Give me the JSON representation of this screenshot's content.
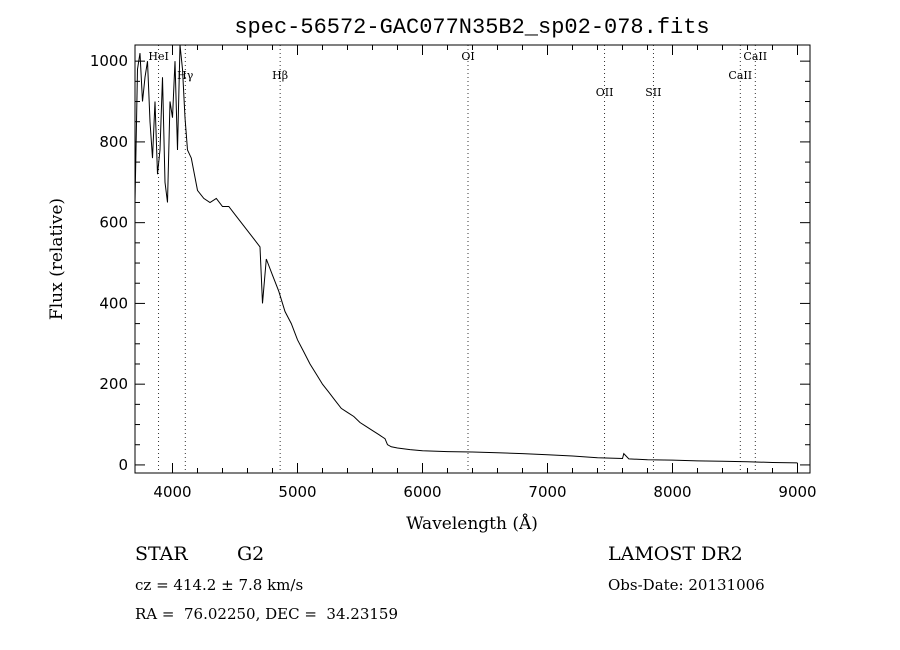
{
  "chart_data": {
    "type": "line",
    "title": "spec-56572-GAC077N35B2_sp02-078.fits",
    "xlabel": "Wavelength (Å)",
    "ylabel": "Flux (relative)",
    "xlim": [
      3700,
      9100
    ],
    "ylim": [
      -20,
      1040
    ],
    "x_ticks": [
      4000,
      5000,
      6000,
      7000,
      8000,
      9000
    ],
    "y_ticks": [
      0,
      200,
      400,
      600,
      800,
      1000
    ],
    "grid": false,
    "series": [
      {
        "x": [
          3700,
          3720,
          3740,
          3760,
          3780,
          3800,
          3820,
          3840,
          3860,
          3880,
          3900,
          3920,
          3940,
          3960,
          3980,
          4000,
          4020,
          4040,
          4060,
          4080,
          4100,
          4120,
          4150,
          4200,
          4250,
          4300,
          4350,
          4400,
          4450,
          4500,
          4550,
          4600,
          4650,
          4700,
          4720,
          4750,
          4800,
          4850,
          4900,
          4950,
          5000,
          5050,
          5100,
          5150,
          5200,
          5250,
          5300,
          5350,
          5400,
          5450,
          5500,
          5550,
          5600,
          5650,
          5700,
          5720,
          5750,
          5800,
          5900,
          6000,
          6200,
          6400,
          6600,
          6800,
          7000,
          7200,
          7400,
          7600,
          7610,
          7650,
          7800,
          8000,
          8200,
          8400,
          8600,
          8800,
          9000
        ],
        "y": [
          650,
          980,
          1020,
          900,
          960,
          1000,
          850,
          760,
          900,
          720,
          780,
          960,
          700,
          650,
          900,
          860,
          1000,
          780,
          1040,
          980,
          860,
          780,
          760,
          680,
          660,
          650,
          660,
          640,
          640,
          620,
          600,
          580,
          560,
          540,
          400,
          510,
          470,
          430,
          380,
          350,
          310,
          280,
          250,
          225,
          200,
          180,
          160,
          140,
          130,
          120,
          105,
          95,
          85,
          75,
          65,
          50,
          45,
          42,
          38,
          35,
          33,
          32,
          30,
          28,
          25,
          22,
          18,
          16,
          28,
          15,
          13,
          12,
          10,
          9,
          8,
          6,
          5
        ]
      }
    ],
    "line_markers": [
      {
        "label": "HeI",
        "x": 3889
      },
      {
        "label": "Hγ",
        "x": 4102
      },
      {
        "label": "Hβ",
        "x": 4861
      },
      {
        "label": "OI",
        "x": 6364
      },
      {
        "label": "OII",
        "x": 7457
      },
      {
        "label": "SII",
        "x": 7847
      },
      {
        "label": "CaII",
        "x": 8542
      },
      {
        "label": "CaII",
        "x": 8662
      }
    ]
  },
  "footer": {
    "class_label": "STAR",
    "subclass_label": "G2",
    "survey_label": "LAMOST DR2",
    "redshift_text": "cz = 414.2 ± 7.8 km/s",
    "obs_date_text": "Obs-Date: 20131006",
    "coords_text": "RA =  76.02250, DEC =  34.23159"
  }
}
